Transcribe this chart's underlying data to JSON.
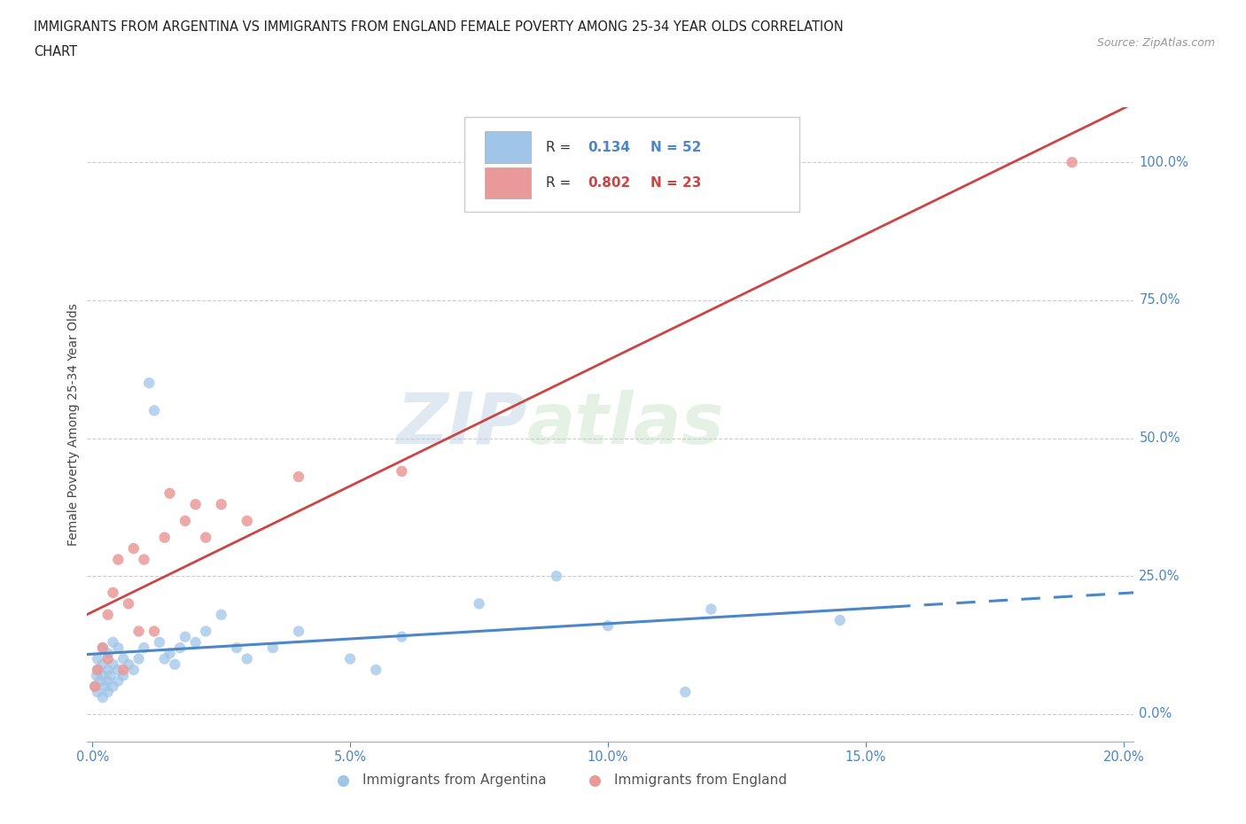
{
  "title_line1": "IMMIGRANTS FROM ARGENTINA VS IMMIGRANTS FROM ENGLAND FEMALE POVERTY AMONG 25-34 YEAR OLDS CORRELATION",
  "title_line2": "CHART",
  "source": "Source: ZipAtlas.com",
  "ylabel": "Female Poverty Among 25-34 Year Olds",
  "xlim": [
    -0.001,
    0.202
  ],
  "ylim": [
    -0.05,
    1.1
  ],
  "yticks": [
    0.0,
    0.25,
    0.5,
    0.75,
    1.0
  ],
  "ytick_labels": [
    "0.0%",
    "25.0%",
    "50.0%",
    "75.0%",
    "100.0%"
  ],
  "xticks": [
    0.0,
    0.05,
    0.1,
    0.15,
    0.2
  ],
  "xtick_labels": [
    "0.0%",
    "5.0%",
    "10.0%",
    "15.0%",
    "20.0%"
  ],
  "argentina_color": "#9fc5e8",
  "england_color": "#ea9999",
  "argentina_line_color": "#4a86c8",
  "england_line_color": "#cc4444",
  "argentina_R": 0.134,
  "argentina_N": 52,
  "england_R": 0.802,
  "england_N": 23,
  "legend_label_argentina": "Immigrants from Argentina",
  "legend_label_england": "Immigrants from England",
  "watermark": "ZIPatlas",
  "argentina_x": [
    0.0005,
    0.0008,
    0.001,
    0.001,
    0.001,
    0.0015,
    0.002,
    0.002,
    0.002,
    0.002,
    0.0025,
    0.003,
    0.003,
    0.003,
    0.003,
    0.0035,
    0.004,
    0.004,
    0.004,
    0.005,
    0.005,
    0.005,
    0.006,
    0.006,
    0.007,
    0.008,
    0.009,
    0.01,
    0.011,
    0.012,
    0.013,
    0.014,
    0.015,
    0.016,
    0.017,
    0.018,
    0.02,
    0.022,
    0.025,
    0.028,
    0.03,
    0.035,
    0.04,
    0.05,
    0.055,
    0.06,
    0.075,
    0.09,
    0.1,
    0.12,
    0.145,
    0.115
  ],
  "argentina_y": [
    0.05,
    0.07,
    0.04,
    0.08,
    0.1,
    0.06,
    0.03,
    0.07,
    0.09,
    0.12,
    0.05,
    0.04,
    0.06,
    0.08,
    0.11,
    0.07,
    0.05,
    0.09,
    0.13,
    0.06,
    0.08,
    0.12,
    0.07,
    0.1,
    0.09,
    0.08,
    0.1,
    0.12,
    0.6,
    0.55,
    0.13,
    0.1,
    0.11,
    0.09,
    0.12,
    0.14,
    0.13,
    0.15,
    0.18,
    0.12,
    0.1,
    0.12,
    0.15,
    0.1,
    0.08,
    0.14,
    0.2,
    0.25,
    0.16,
    0.19,
    0.17,
    0.04
  ],
  "england_x": [
    0.0005,
    0.001,
    0.002,
    0.003,
    0.003,
    0.004,
    0.005,
    0.006,
    0.007,
    0.008,
    0.009,
    0.01,
    0.012,
    0.014,
    0.015,
    0.018,
    0.02,
    0.022,
    0.025,
    0.03,
    0.04,
    0.06,
    0.19
  ],
  "england_y": [
    0.05,
    0.08,
    0.12,
    0.1,
    0.18,
    0.22,
    0.28,
    0.08,
    0.2,
    0.3,
    0.15,
    0.28,
    0.15,
    0.32,
    0.4,
    0.35,
    0.38,
    0.32,
    0.38,
    0.35,
    0.43,
    0.44,
    1.0
  ]
}
